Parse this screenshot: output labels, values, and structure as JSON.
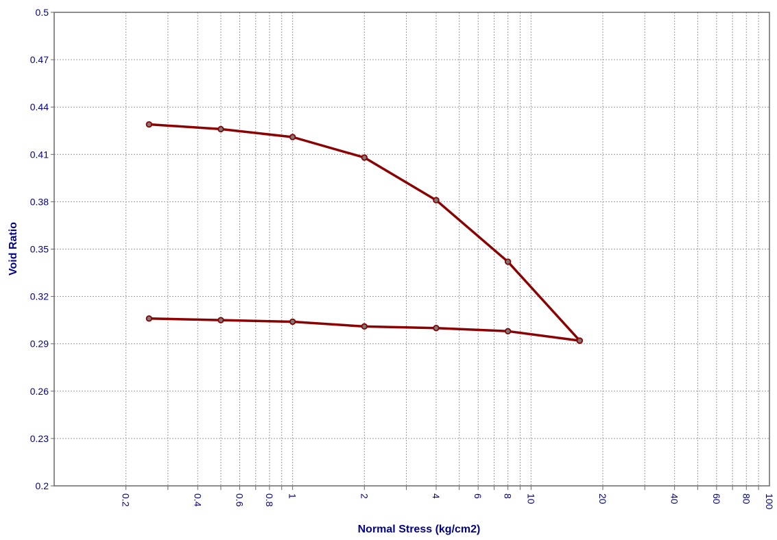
{
  "chart_data": {
    "type": "line",
    "xlabel": "Normal Stress (kg/cm2)",
    "ylabel": "Void Ratio",
    "x_scale": "log",
    "xlim": [
      0.1,
      100
    ],
    "ylim": [
      0.2,
      0.5
    ],
    "grid": true,
    "x_ticks": [
      0.2,
      0.4,
      0.6,
      0.8,
      1,
      2,
      4,
      6,
      8,
      10,
      20,
      40,
      60,
      80,
      100
    ],
    "x_tick_labels": [
      "0.2",
      "0.4",
      "0.6",
      "0.8",
      "1",
      "2",
      "4",
      "6",
      "8",
      "10",
      "20",
      "40",
      "60",
      "80",
      "100"
    ],
    "y_ticks": [
      0.2,
      0.23,
      0.26,
      0.29,
      0.32,
      0.35,
      0.38,
      0.41,
      0.44,
      0.47,
      0.5
    ],
    "y_tick_labels": [
      "0.2",
      "0.23",
      "0.26",
      "0.29",
      "0.32",
      "0.35",
      "0.38",
      "0.41",
      "0.44",
      "0.47",
      "0.5"
    ],
    "series": [
      {
        "x": [
          0.25,
          0.5,
          1,
          2,
          4,
          8,
          16
        ],
        "y": [
          0.429,
          0.426,
          0.421,
          0.408,
          0.381,
          0.342,
          0.292
        ]
      },
      {
        "x": [
          16,
          8,
          4,
          2,
          1,
          0.5,
          0.25
        ],
        "y": [
          0.292,
          0.298,
          0.3,
          0.301,
          0.304,
          0.305,
          0.306
        ]
      }
    ],
    "colors": {
      "line": "#8b0000",
      "marker_fill": "#7a7a7a",
      "axis_text": "#00008b",
      "grid": "#9a9a9a",
      "frame": "#666666"
    }
  }
}
